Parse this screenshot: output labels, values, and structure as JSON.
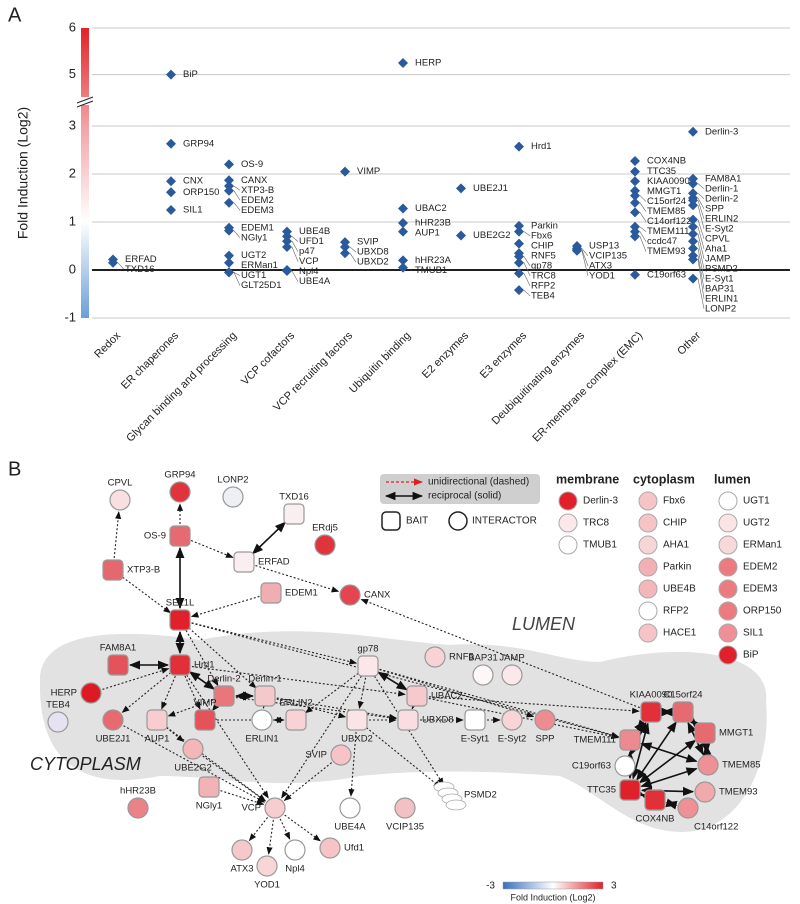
{
  "panels": {
    "a": "A",
    "b": "B"
  },
  "chart_data": {
    "type": "scatter",
    "y_label": "Fold Induction (Log2)",
    "color": "#2a5a9c",
    "grid": true,
    "ylim": [
      -1,
      6
    ],
    "yticks": [
      -1,
      0,
      1,
      2,
      3,
      5,
      6
    ],
    "ybreak": [
      3.5,
      4.5
    ],
    "colorbar_colors": [
      "#e32227",
      "#f2a0a4",
      "#ffffff",
      "#6a9fd8"
    ],
    "categories": [
      "Redox",
      "ER chaperones",
      "Glycan binding and processing",
      "VCP cofactors",
      "VCP recruiting factors",
      "Ubiquitin binding",
      "E2 enzymes",
      "E3 enzymes",
      "Deubiquitinating enzymes",
      "ER-membrane complex (EMC)",
      "Other"
    ],
    "points": [
      {
        "category": "Redox",
        "label": "ERFAD",
        "value": 0.22
      },
      {
        "category": "Redox",
        "label": "TXD16",
        "value": 0.15
      },
      {
        "category": "ER chaperones",
        "label": "BiP",
        "value": 5.0
      },
      {
        "category": "ER chaperones",
        "label": "GRP94",
        "value": 2.63
      },
      {
        "category": "ER chaperones",
        "label": "CNX",
        "value": 1.85
      },
      {
        "category": "ER chaperones",
        "label": "ORP150",
        "value": 1.62
      },
      {
        "category": "ER chaperones",
        "label": "SIL1",
        "value": 1.25
      },
      {
        "category": "Glycan binding and processing",
        "label": "OS-9",
        "value": 2.2
      },
      {
        "category": "Glycan binding and processing",
        "label": "CANX",
        "value": 1.87
      },
      {
        "category": "Glycan binding and processing",
        "label": "XTP3-B",
        "value": 1.75
      },
      {
        "category": "Glycan binding and processing",
        "label": "EDEM2",
        "value": 1.65
      },
      {
        "category": "Glycan binding and processing",
        "label": "EDEM3",
        "value": 1.4
      },
      {
        "category": "Glycan binding and processing",
        "label": "EDEM1",
        "value": 0.88
      },
      {
        "category": "Glycan binding and processing",
        "label": "NGly1",
        "value": 0.82
      },
      {
        "category": "Glycan binding and processing",
        "label": "UGT2",
        "value": 0.3
      },
      {
        "category": "Glycan binding and processing",
        "label": "ERMan1",
        "value": 0.15
      },
      {
        "category": "Glycan binding and processing",
        "label": "UGT1",
        "value": -0.05
      },
      {
        "category": "Glycan binding and processing",
        "label": "GLT25D1",
        "value": -0.05
      },
      {
        "category": "VCP cofactors",
        "label": "UBE4B",
        "value": 0.8
      },
      {
        "category": "VCP cofactors",
        "label": "UFD1",
        "value": 0.7
      },
      {
        "category": "VCP cofactors",
        "label": "p47",
        "value": 0.6
      },
      {
        "category": "VCP cofactors",
        "label": "VCP",
        "value": 0.48
      },
      {
        "category": "VCP cofactors",
        "label": "Npl4",
        "value": 0.0
      },
      {
        "category": "VCP cofactors",
        "label": "UBE4A",
        "value": -0.02
      },
      {
        "category": "VCP recruiting factors",
        "label": "VIMP",
        "value": 2.05
      },
      {
        "category": "VCP recruiting factors",
        "label": "SVIP",
        "value": 0.58
      },
      {
        "category": "VCP recruiting factors",
        "label": "UBXD8",
        "value": 0.48
      },
      {
        "category": "VCP recruiting factors",
        "label": "UBXD2",
        "value": 0.35
      },
      {
        "category": "Ubiquitin binding",
        "label": "HERP",
        "value": 5.25
      },
      {
        "category": "Ubiquitin binding",
        "label": "UBAC2",
        "value": 1.28
      },
      {
        "category": "Ubiquitin binding",
        "label": "hHR23B",
        "value": 0.98
      },
      {
        "category": "Ubiquitin binding",
        "label": "AUP1",
        "value": 0.8
      },
      {
        "category": "Ubiquitin binding",
        "label": "hHR23A",
        "value": 0.2
      },
      {
        "category": "Ubiquitin binding",
        "label": "TMUB1",
        "value": 0.05
      },
      {
        "category": "E2 enzymes",
        "label": "UBE2J1",
        "value": 1.7
      },
      {
        "category": "E2 enzymes",
        "label": "UBE2G2",
        "value": 0.72
      },
      {
        "category": "E3 enzymes",
        "label": "Hrd1",
        "value": 2.57
      },
      {
        "category": "E3 enzymes",
        "label": "Parkin",
        "value": 0.92
      },
      {
        "category": "E3 enzymes",
        "label": "Fbx6",
        "value": 0.8
      },
      {
        "category": "E3 enzymes",
        "label": "CHIP",
        "value": 0.55
      },
      {
        "category": "E3 enzymes",
        "label": "RNF5",
        "value": 0.35
      },
      {
        "category": "E3 enzymes",
        "label": "gp78",
        "value": 0.28
      },
      {
        "category": "E3 enzymes",
        "label": "TRC8",
        "value": 0.15
      },
      {
        "category": "E3 enzymes",
        "label": "RFP2",
        "value": -0.07
      },
      {
        "category": "E3 enzymes",
        "label": "TEB4",
        "value": -0.42
      },
      {
        "category": "Deubiquitinating enzymes",
        "label": "USP13",
        "value": 0.5
      },
      {
        "category": "Deubiquitinating enzymes",
        "label": "VCIP135",
        "value": 0.45
      },
      {
        "category": "Deubiquitinating enzymes",
        "label": "ATX3",
        "value": 0.42
      },
      {
        "category": "Deubiquitinating enzymes",
        "label": "YOD1",
        "value": 0.4
      },
      {
        "category": "ER-membrane complex (EMC)",
        "label": "COX4NB",
        "value": 2.27
      },
      {
        "category": "ER-membrane complex (EMC)",
        "label": "TTC35",
        "value": 2.05
      },
      {
        "category": "ER-membrane complex (EMC)",
        "label": "KIAA0090",
        "value": 1.85
      },
      {
        "category": "ER-membrane complex (EMC)",
        "label": "MMGT1",
        "value": 1.65
      },
      {
        "category": "ER-membrane complex (EMC)",
        "label": "C15orf24",
        "value": 1.55
      },
      {
        "category": "ER-membrane complex (EMC)",
        "label": "TMEM85",
        "value": 1.4
      },
      {
        "category": "ER-membrane complex (EMC)",
        "label": "C14orf122",
        "value": 1.2
      },
      {
        "category": "ER-membrane complex (EMC)",
        "label": "TMEM111",
        "value": 0.9
      },
      {
        "category": "ER-membrane complex (EMC)",
        "label": "ccdc47",
        "value": 0.8
      },
      {
        "category": "ER-membrane complex (EMC)",
        "label": "TMEM93",
        "value": 0.7
      },
      {
        "category": "ER-membrane complex (EMC)",
        "label": "C19orf63",
        "value": -0.1
      },
      {
        "category": "Other",
        "label": "Derlin-3",
        "value": 2.88
      },
      {
        "category": "Other",
        "label": "FAM8A1",
        "value": 1.9
      },
      {
        "category": "Other",
        "label": "Derlin-1",
        "value": 1.8
      },
      {
        "category": "Other",
        "label": "Derlin-2",
        "value": 1.6
      },
      {
        "category": "Other",
        "label": "SPP",
        "value": 1.5
      },
      {
        "category": "Other",
        "label": "ERLIN2",
        "value": 1.45
      },
      {
        "category": "Other",
        "label": "E-Syt2",
        "value": 1.35
      },
      {
        "category": "Other",
        "label": "CPVL",
        "value": 1.05
      },
      {
        "category": "Other",
        "label": "Aha1",
        "value": 0.9
      },
      {
        "category": "Other",
        "label": "JAMP",
        "value": 0.75
      },
      {
        "category": "Other",
        "label": "PSMD2",
        "value": 0.6
      },
      {
        "category": "Other",
        "label": "E-Syt1",
        "value": 0.45
      },
      {
        "category": "Other",
        "label": "BAP31",
        "value": 0.3
      },
      {
        "category": "Other",
        "label": "ERLIN1",
        "value": 0.22
      },
      {
        "category": "Other",
        "label": "LONP2",
        "value": -0.18
      }
    ]
  },
  "diagram": {
    "regions": {
      "lumen": "LUMEN",
      "cytoplasm": "CYTOPLASM"
    },
    "edge_legend": {
      "dashed": "unidirectional (dashed)",
      "solid": "reciprocal (solid)"
    },
    "shape_legend": {
      "bait": "BAIT",
      "interactor": "INTERACTOR"
    },
    "colorbar": {
      "ticks": [
        -3,
        3
      ],
      "label": "Fold Induction (Log2)",
      "colors": [
        "#3a6fc0",
        "#ffffff",
        "#e0202a"
      ]
    },
    "nodes": [
      {
        "label": "CPVL",
        "shape": "circle",
        "color": "#f8e0e2"
      },
      {
        "label": "GRP94",
        "shape": "circle",
        "color": "#e0343d"
      },
      {
        "label": "LONP2",
        "shape": "circle",
        "color": "#eeeef5"
      },
      {
        "label": "OS-9",
        "shape": "square",
        "color": "#e66a70"
      },
      {
        "label": "TXD16",
        "shape": "square",
        "color": "#f9eef0"
      },
      {
        "label": "ERFAD",
        "shape": "square",
        "color": "#fbeef0"
      },
      {
        "label": "ERdj5",
        "shape": "circle",
        "color": "#e0343d"
      },
      {
        "label": "XTP3-B",
        "shape": "square",
        "color": "#e5686e"
      },
      {
        "label": "EDEM1",
        "shape": "square",
        "color": "#f1aeb2"
      },
      {
        "label": "CANX",
        "shape": "circle",
        "color": "#e54550"
      },
      {
        "label": "SEL1L",
        "shape": "square",
        "color": "#e0202a"
      },
      {
        "label": "FAM8A1",
        "shape": "square",
        "color": "#e4525a"
      },
      {
        "label": "Hrd1",
        "shape": "square",
        "color": "#e23038"
      },
      {
        "label": "HERP",
        "shape": "circle",
        "color": "#dd1a24"
      },
      {
        "label": "Derlin-2",
        "shape": "square",
        "color": "#e8767b"
      },
      {
        "label": "Derlin-1",
        "shape": "square",
        "color": "#f5c8cb"
      },
      {
        "label": "gp78",
        "shape": "square",
        "color": "#fbe7e9"
      },
      {
        "label": "RNF5",
        "shape": "circle",
        "color": "#f8d3d6"
      },
      {
        "label": "BAP31",
        "shape": "circle",
        "color": "#fdf7f7"
      },
      {
        "label": "JAMP",
        "shape": "circle",
        "color": "#fbe8ea"
      },
      {
        "label": "UBAC2",
        "shape": "square",
        "color": "#f6c9cc"
      },
      {
        "label": "TEB4",
        "shape": "circle",
        "color": "#e6e2f1"
      },
      {
        "label": "UBE2J1",
        "shape": "circle",
        "color": "#e66a70"
      },
      {
        "label": "AUP1",
        "shape": "square",
        "color": "#f8cdd0"
      },
      {
        "label": "VIMP",
        "shape": "square",
        "color": "#e5525a"
      },
      {
        "label": "ERLIN1",
        "shape": "circle",
        "color": "#ffffff"
      },
      {
        "label": "ERLIN2",
        "shape": "square",
        "color": "#f8d2d5"
      },
      {
        "label": "UBXD2",
        "shape": "square",
        "color": "#fbe4e6"
      },
      {
        "label": "UBXD8",
        "shape": "square",
        "color": "#f9dde0"
      },
      {
        "label": "E-Syt1",
        "shape": "square",
        "color": "#ffffff"
      },
      {
        "label": "E-Syt2",
        "shape": "circle",
        "color": "#f8d4d6"
      },
      {
        "label": "SPP",
        "shape": "circle",
        "color": "#ec8d91"
      },
      {
        "label": "SVIP",
        "shape": "circle",
        "color": "#f6c4c7"
      },
      {
        "label": "UBE2G2",
        "shape": "circle",
        "color": "#f3b6b9"
      },
      {
        "label": "NGly1",
        "shape": "square",
        "color": "#f2b3b6"
      },
      {
        "label": "hHR23B",
        "shape": "circle",
        "color": "#ea8287"
      },
      {
        "label": "VCP",
        "shape": "circle",
        "color": "#f8cdd0"
      },
      {
        "label": "UBE4A",
        "shape": "circle",
        "color": "#ffffff"
      },
      {
        "label": "VCIP135",
        "shape": "circle",
        "color": "#f3c0c3"
      },
      {
        "label": "PSMD2",
        "shape": "proteasome",
        "color": "#ffffff"
      },
      {
        "label": "ATX3",
        "shape": "circle",
        "color": "#f6c8cb"
      },
      {
        "label": "YOD1",
        "shape": "circle",
        "color": "#f8d6d8"
      },
      {
        "label": "Npl4",
        "shape": "circle",
        "color": "#ffffff"
      },
      {
        "label": "Ufd1",
        "shape": "circle",
        "color": "#f6c4c7"
      },
      {
        "label": "TMEM111",
        "shape": "square",
        "color": "#ec8a8f"
      },
      {
        "label": "KIAA0090",
        "shape": "square",
        "color": "#e23038"
      },
      {
        "label": "C15orf24",
        "shape": "square",
        "color": "#e66a70"
      },
      {
        "label": "MMGT1",
        "shape": "square",
        "color": "#e66a70"
      },
      {
        "label": "C19orf63",
        "shape": "circle",
        "color": "#ffffff"
      },
      {
        "label": "TMEM85",
        "shape": "circle",
        "color": "#ee9096"
      },
      {
        "label": "TMEM93",
        "shape": "circle",
        "color": "#f1a9ac"
      },
      {
        "label": "TTC35",
        "shape": "square",
        "color": "#e0202a"
      },
      {
        "label": "COX4NB",
        "shape": "square",
        "color": "#e23038"
      },
      {
        "label": "C14orf122",
        "shape": "circle",
        "color": "#ee9096"
      }
    ],
    "legend_groups": [
      {
        "title": "membrane",
        "items": [
          {
            "label": "Derlin-3",
            "color": "#e0202a"
          },
          {
            "label": "TRC8",
            "color": "#fbe8ea"
          },
          {
            "label": "TMUB1",
            "color": "#ffffff"
          }
        ]
      },
      {
        "title": "cytoplasm",
        "items": [
          {
            "label": "Fbx6",
            "color": "#f6c4c7"
          },
          {
            "label": "CHIP",
            "color": "#f6c4c7"
          },
          {
            "label": "AHA1",
            "color": "#f8d6d8"
          },
          {
            "label": "Parkin",
            "color": "#f3b0b4"
          },
          {
            "label": "UBE4B",
            "color": "#f3b6b9"
          },
          {
            "label": "RFP2",
            "color": "#ffffff"
          },
          {
            "label": "HACE1",
            "color": "#f6c4c7"
          }
        ]
      },
      {
        "title": "lumen",
        "items": [
          {
            "label": "UGT1",
            "color": "#ffffff"
          },
          {
            "label": "UGT2",
            "color": "#fbe4e6"
          },
          {
            "label": "ERMan1",
            "color": "#f8d8da"
          },
          {
            "label": "EDEM2",
            "color": "#ec7b80"
          },
          {
            "label": "EDEM3",
            "color": "#ec7b80"
          },
          {
            "label": "ORP150",
            "color": "#ec7b80"
          },
          {
            "label": "SIL1",
            "color": "#ee9096"
          },
          {
            "label": "BiP",
            "color": "#e0202a"
          }
        ]
      }
    ]
  }
}
